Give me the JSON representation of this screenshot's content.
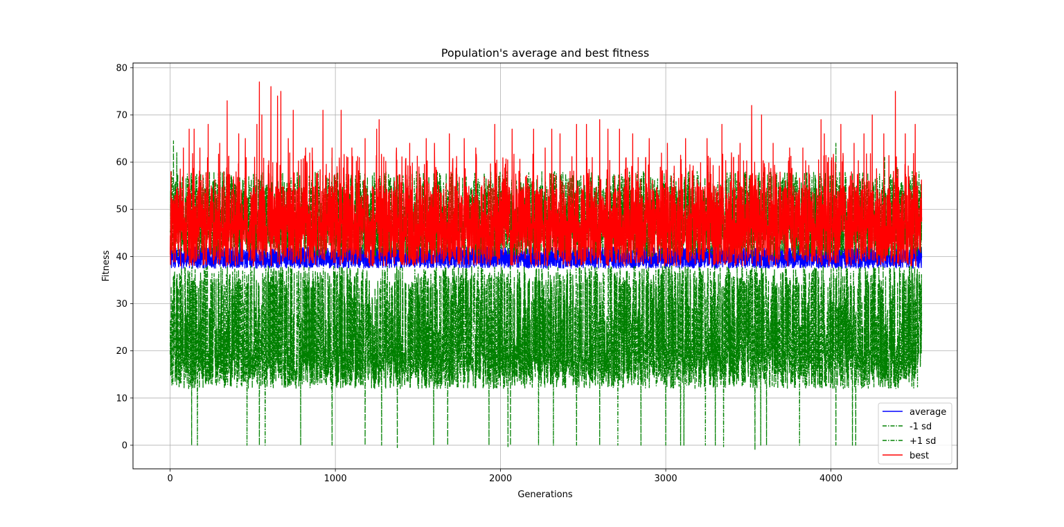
{
  "chart_data": {
    "type": "line",
    "title": "Population's average and best fitness",
    "xlabel": "Generations",
    "ylabel": "Fitness",
    "xlim": [
      -225,
      4765
    ],
    "ylim": [
      -5,
      81
    ],
    "xticks": [
      0,
      1000,
      2000,
      3000,
      4000
    ],
    "yticks": [
      0,
      10,
      20,
      30,
      40,
      50,
      60,
      70,
      80
    ],
    "grid": true,
    "legend_position": "lower right",
    "generations": 4550,
    "series": [
      {
        "name": "average",
        "color": "#0000ff",
        "style": "solid",
        "typical_range": [
          37,
          43
        ],
        "notable_points": [
          {
            "x": 0,
            "y": 42
          },
          {
            "x": 425,
            "y": 45
          },
          {
            "x": 3130,
            "y": 44
          }
        ]
      },
      {
        "name": "-1 sd",
        "color": "#008000",
        "style": "dashdot",
        "typical_range": [
          12,
          37
        ],
        "notable_points": [
          {
            "x": 130,
            "y": 0
          },
          {
            "x": 165,
            "y": 0
          },
          {
            "x": 465,
            "y": 0
          },
          {
            "x": 540,
            "y": 0
          },
          {
            "x": 575,
            "y": 0
          },
          {
            "x": 790,
            "y": 0
          },
          {
            "x": 980,
            "y": 0
          },
          {
            "x": 1180,
            "y": 0
          },
          {
            "x": 1280,
            "y": 0
          },
          {
            "x": 1375,
            "y": -0.5
          },
          {
            "x": 1595,
            "y": 0
          },
          {
            "x": 1680,
            "y": 0
          },
          {
            "x": 1930,
            "y": 0
          },
          {
            "x": 2045,
            "y": -0.3
          },
          {
            "x": 2060,
            "y": 0
          },
          {
            "x": 2230,
            "y": 0
          },
          {
            "x": 2320,
            "y": 0
          },
          {
            "x": 2460,
            "y": 0
          },
          {
            "x": 2600,
            "y": 0
          },
          {
            "x": 2710,
            "y": 0
          },
          {
            "x": 2850,
            "y": 0
          },
          {
            "x": 3000,
            "y": 0
          },
          {
            "x": 3090,
            "y": 0
          },
          {
            "x": 3110,
            "y": 0
          },
          {
            "x": 3240,
            "y": 0
          },
          {
            "x": 3300,
            "y": 0
          },
          {
            "x": 3350,
            "y": -0.3
          },
          {
            "x": 3540,
            "y": -1
          },
          {
            "x": 3575,
            "y": 0
          },
          {
            "x": 3610,
            "y": 0
          },
          {
            "x": 3810,
            "y": 0
          },
          {
            "x": 4030,
            "y": 0
          },
          {
            "x": 4130,
            "y": 0
          },
          {
            "x": 4150,
            "y": 0
          }
        ]
      },
      {
        "name": "+1 sd",
        "color": "#008000",
        "style": "dashdot",
        "typical_range": [
          40,
          56
        ],
        "notable_points": [
          {
            "x": 20,
            "y": 64.5
          },
          {
            "x": 40,
            "y": 62
          },
          {
            "x": 980,
            "y": 61
          },
          {
            "x": 3190,
            "y": 58
          },
          {
            "x": 4030,
            "y": 64
          },
          {
            "x": 4325,
            "y": 61
          },
          {
            "x": 4400,
            "y": 59
          }
        ]
      },
      {
        "name": "best",
        "color": "#ff0000",
        "style": "solid",
        "typical_range": [
          38,
          55
        ],
        "peaks": [
          {
            "x": 5,
            "y": 58
          },
          {
            "x": 80,
            "y": 63
          },
          {
            "x": 115,
            "y": 67
          },
          {
            "x": 145,
            "y": 67
          },
          {
            "x": 180,
            "y": 63
          },
          {
            "x": 230,
            "y": 68
          },
          {
            "x": 300,
            "y": 64
          },
          {
            "x": 345,
            "y": 73
          },
          {
            "x": 415,
            "y": 66
          },
          {
            "x": 455,
            "y": 65
          },
          {
            "x": 525,
            "y": 68
          },
          {
            "x": 540,
            "y": 77
          },
          {
            "x": 555,
            "y": 70
          },
          {
            "x": 610,
            "y": 76
          },
          {
            "x": 650,
            "y": 74
          },
          {
            "x": 670,
            "y": 75
          },
          {
            "x": 715,
            "y": 65
          },
          {
            "x": 745,
            "y": 71
          },
          {
            "x": 820,
            "y": 63
          },
          {
            "x": 860,
            "y": 63
          },
          {
            "x": 925,
            "y": 71
          },
          {
            "x": 980,
            "y": 63
          },
          {
            "x": 1035,
            "y": 71
          },
          {
            "x": 1100,
            "y": 63
          },
          {
            "x": 1180,
            "y": 65
          },
          {
            "x": 1250,
            "y": 67
          },
          {
            "x": 1265,
            "y": 69
          },
          {
            "x": 1370,
            "y": 63
          },
          {
            "x": 1450,
            "y": 64
          },
          {
            "x": 1550,
            "y": 65
          },
          {
            "x": 1600,
            "y": 64
          },
          {
            "x": 1690,
            "y": 66
          },
          {
            "x": 1780,
            "y": 65
          },
          {
            "x": 1850,
            "y": 63
          },
          {
            "x": 1965,
            "y": 68
          },
          {
            "x": 2070,
            "y": 67
          },
          {
            "x": 2200,
            "y": 67
          },
          {
            "x": 2270,
            "y": 63
          },
          {
            "x": 2310,
            "y": 67
          },
          {
            "x": 2360,
            "y": 66
          },
          {
            "x": 2460,
            "y": 68
          },
          {
            "x": 2520,
            "y": 68
          },
          {
            "x": 2600,
            "y": 69
          },
          {
            "x": 2650,
            "y": 67
          },
          {
            "x": 2720,
            "y": 67
          },
          {
            "x": 2800,
            "y": 66
          },
          {
            "x": 2900,
            "y": 65
          },
          {
            "x": 3010,
            "y": 64
          },
          {
            "x": 3120,
            "y": 65
          },
          {
            "x": 3250,
            "y": 65
          },
          {
            "x": 3340,
            "y": 68
          },
          {
            "x": 3450,
            "y": 64
          },
          {
            "x": 3520,
            "y": 72
          },
          {
            "x": 3580,
            "y": 70
          },
          {
            "x": 3650,
            "y": 64
          },
          {
            "x": 3750,
            "y": 63
          },
          {
            "x": 3830,
            "y": 63
          },
          {
            "x": 3940,
            "y": 69
          },
          {
            "x": 3960,
            "y": 66
          },
          {
            "x": 4060,
            "y": 68
          },
          {
            "x": 4140,
            "y": 64
          },
          {
            "x": 4200,
            "y": 66
          },
          {
            "x": 4250,
            "y": 70
          },
          {
            "x": 4320,
            "y": 66
          },
          {
            "x": 4390,
            "y": 75
          },
          {
            "x": 4450,
            "y": 66
          },
          {
            "x": 4510,
            "y": 68
          }
        ]
      }
    ]
  }
}
